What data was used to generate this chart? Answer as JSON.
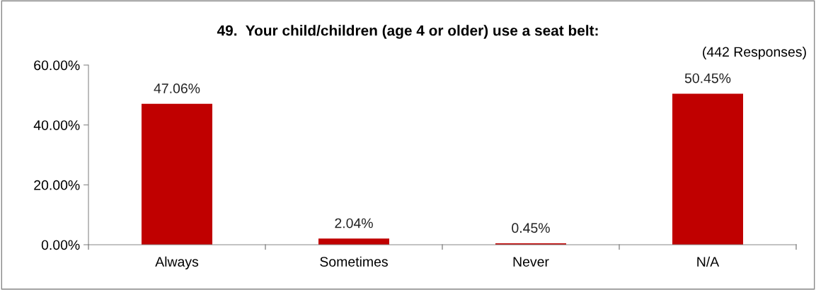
{
  "chart_data": {
    "type": "bar",
    "title": "49.  Your child/children (age 4 or older) use a seat belt:",
    "categories": [
      "Always",
      "Sometimes",
      "Never",
      "N/A"
    ],
    "values": [
      47.06,
      2.04,
      0.45,
      50.45
    ],
    "value_labels": [
      "47.06%",
      "2.04%",
      "0.45%",
      "50.45%"
    ],
    "color": "#c00000",
    "ylim": [
      0,
      60
    ],
    "yticks": [
      {
        "value": 0,
        "label": "0.00%"
      },
      {
        "value": 20,
        "label": "20.00%"
      },
      {
        "value": 40,
        "label": "40.00%"
      },
      {
        "value": 60,
        "label": "60.00%"
      }
    ],
    "annotations": [
      "(442 Responses)"
    ],
    "grid": false,
    "legend": false
  }
}
